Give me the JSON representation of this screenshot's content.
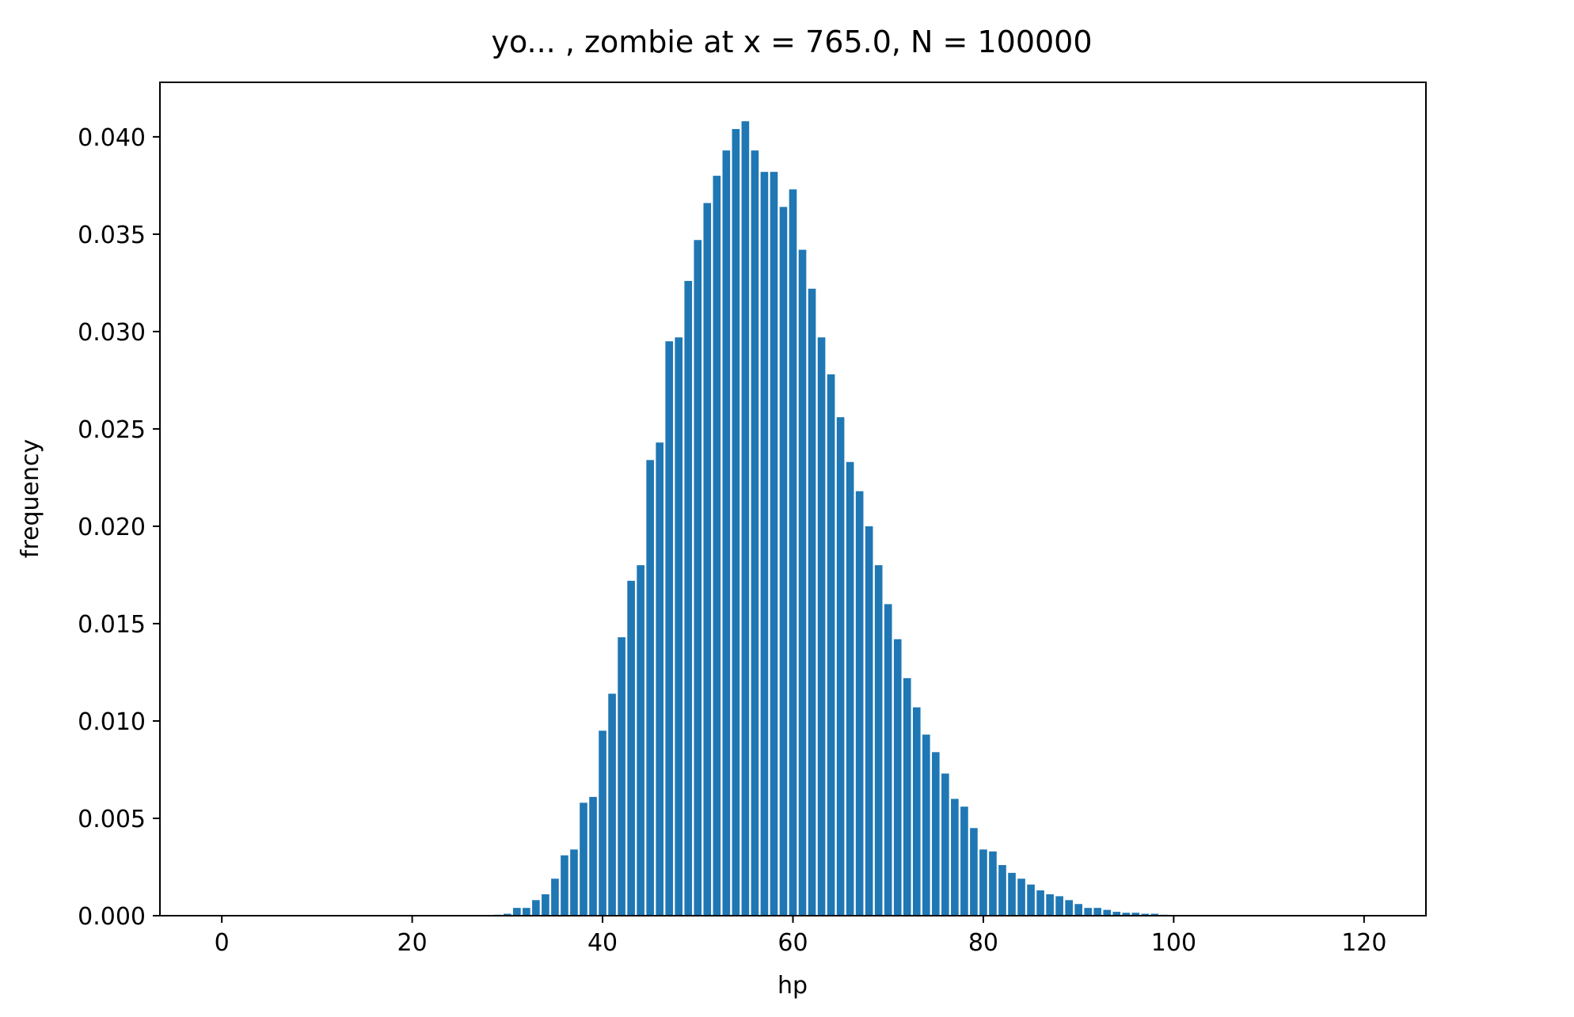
{
  "chart_data": {
    "type": "bar",
    "title": "yo... , zombie at x = 765.0, N = 100000",
    "xlabel": "hp",
    "ylabel": "frequency",
    "xlim": [
      -6.5,
      126.5
    ],
    "ylim": [
      0,
      0.0428
    ],
    "xticks": [
      0,
      20,
      40,
      60,
      80,
      100,
      120
    ],
    "yticks": [
      0.0,
      0.005,
      0.01,
      0.015,
      0.02,
      0.025,
      0.03,
      0.035,
      0.04
    ],
    "ytick_labels": [
      "0.000",
      "0.005",
      "0.010",
      "0.015",
      "0.020",
      "0.025",
      "0.030",
      "0.035",
      "0.040"
    ],
    "grid": false,
    "bar_color": "#1f77b4",
    "bar_width": 0.8,
    "x": [
      29,
      30,
      31,
      32,
      33,
      34,
      35,
      36,
      37,
      38,
      39,
      40,
      41,
      42,
      43,
      44,
      45,
      46,
      47,
      48,
      49,
      50,
      51,
      52,
      53,
      54,
      55,
      56,
      57,
      58,
      59,
      60,
      61,
      62,
      63,
      64,
      65,
      66,
      67,
      68,
      69,
      70,
      71,
      72,
      73,
      74,
      75,
      76,
      77,
      78,
      79,
      80,
      81,
      82,
      83,
      84,
      85,
      86,
      87,
      88,
      89,
      90,
      91,
      92,
      93,
      94,
      95,
      96,
      97,
      98,
      99,
      100
    ],
    "values": [
      5e-05,
      0.0001,
      0.0004,
      0.0004,
      0.0008,
      0.0011,
      0.0019,
      0.0031,
      0.0034,
      0.0058,
      0.0061,
      0.0095,
      0.0114,
      0.0143,
      0.0172,
      0.018,
      0.0234,
      0.0243,
      0.0295,
      0.0297,
      0.0326,
      0.0347,
      0.0366,
      0.038,
      0.0393,
      0.0404,
      0.0408,
      0.0393,
      0.0382,
      0.0382,
      0.0364,
      0.0373,
      0.0342,
      0.0322,
      0.0297,
      0.0278,
      0.0256,
      0.0233,
      0.0218,
      0.02,
      0.018,
      0.016,
      0.0142,
      0.0122,
      0.0107,
      0.0093,
      0.0084,
      0.0073,
      0.006,
      0.0056,
      0.0045,
      0.0034,
      0.0033,
      0.0026,
      0.0022,
      0.0019,
      0.0016,
      0.0013,
      0.0011,
      0.001,
      0.0008,
      0.0006,
      0.0004,
      0.0004,
      0.0003,
      0.0002,
      0.00015,
      0.00015,
      0.0001,
      0.0001,
      5e-05,
      3e-05
    ]
  }
}
